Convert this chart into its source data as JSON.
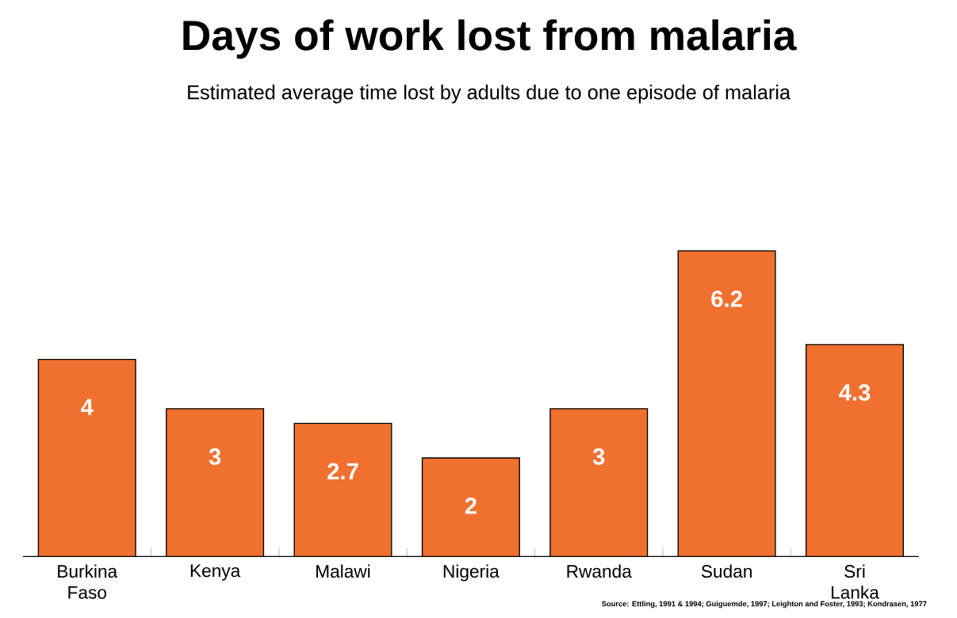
{
  "chart_data": {
    "type": "bar",
    "title": "Days of work lost from malaria",
    "subtitle": "Estimated average time lost by adults due to one episode of malaria",
    "categories": [
      "Burkina Faso",
      "Kenya",
      "Malawi",
      "Nigeria",
      "Rwanda",
      "Sudan",
      "Sri Lanka"
    ],
    "values": [
      4,
      3,
      2.7,
      2,
      3,
      6.2,
      4.3
    ],
    "color": "#f07030",
    "data_labels": true,
    "annotations": [
      "Source: Ettling, 1991 & 1994; Guiguemde, 1997; Leighton and Foster, 1993; Kondrasen, 1977"
    ]
  }
}
